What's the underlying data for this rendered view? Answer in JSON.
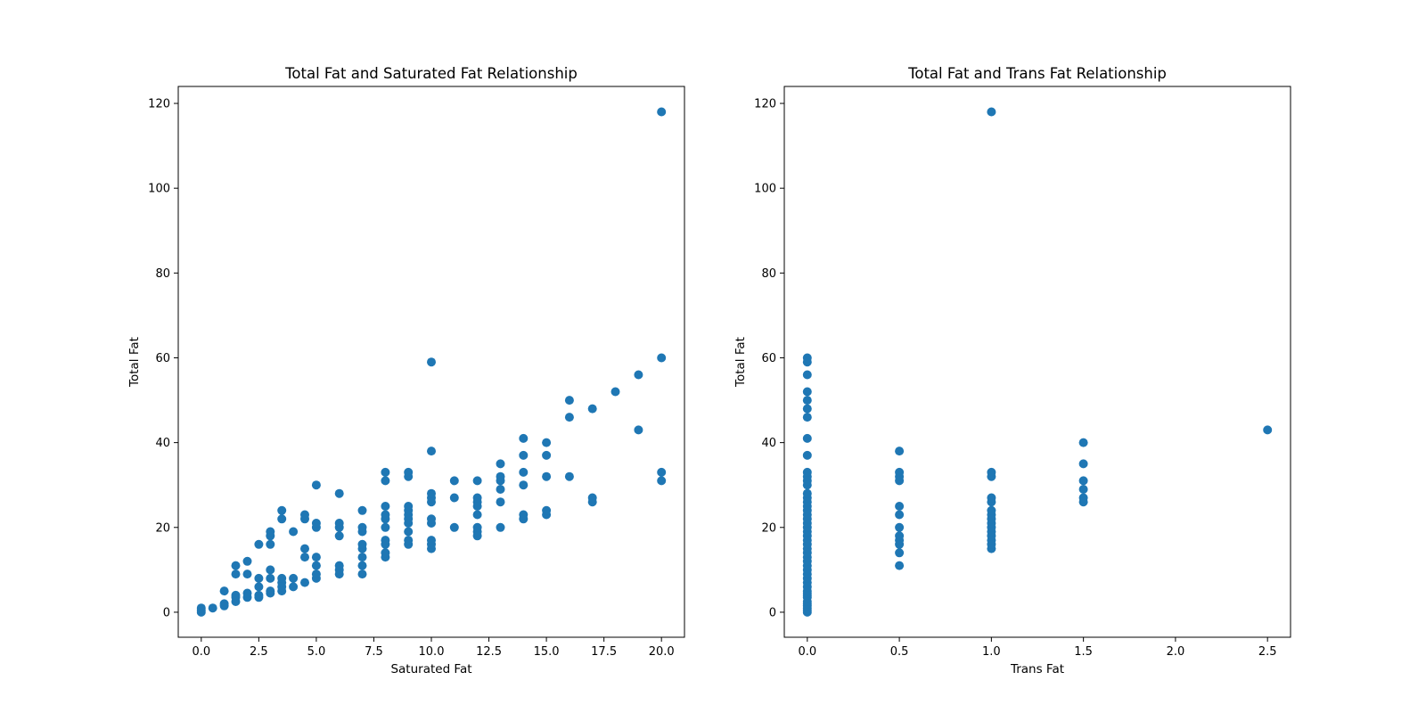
{
  "chart_data": [
    {
      "type": "scatter",
      "title": "Total Fat and Saturated Fat Relationship",
      "xlabel": "Saturated Fat",
      "ylabel": "Total Fat",
      "xlim": [
        -1.0,
        21.0
      ],
      "ylim": [
        -5.9,
        124.0
      ],
      "xticks": [
        0,
        2.5,
        5,
        7.5,
        10,
        12.5,
        15,
        17.5,
        20
      ],
      "xtick_labels": [
        "0.0",
        "2.5",
        "5.0",
        "7.5",
        "10.0",
        "12.5",
        "15.0",
        "17.5",
        "20.0"
      ],
      "yticks": [
        0,
        20,
        40,
        60,
        80,
        100,
        120
      ],
      "ytick_labels": [
        "0",
        "20",
        "40",
        "60",
        "80",
        "100",
        "120"
      ],
      "grid": false,
      "color": "#1f77b4",
      "points": [
        [
          0,
          0
        ],
        [
          0,
          0.5
        ],
        [
          0,
          1
        ],
        [
          0.5,
          1
        ],
        [
          1,
          1.5
        ],
        [
          1,
          2
        ],
        [
          1,
          5
        ],
        [
          1.5,
          2.5
        ],
        [
          1.5,
          3.5
        ],
        [
          1.5,
          4
        ],
        [
          1.5,
          9
        ],
        [
          1.5,
          11
        ],
        [
          2,
          3.5
        ],
        [
          2,
          4.5
        ],
        [
          2,
          9
        ],
        [
          2,
          12
        ],
        [
          2.5,
          3.5
        ],
        [
          2.5,
          4
        ],
        [
          2.5,
          6
        ],
        [
          2.5,
          8
        ],
        [
          2.5,
          16
        ],
        [
          3,
          4.5
        ],
        [
          3,
          5
        ],
        [
          3,
          8
        ],
        [
          3,
          10
        ],
        [
          3,
          16
        ],
        [
          3,
          18
        ],
        [
          3,
          19
        ],
        [
          3.5,
          5
        ],
        [
          3.5,
          6
        ],
        [
          3.5,
          7
        ],
        [
          3.5,
          8
        ],
        [
          3.5,
          22
        ],
        [
          3.5,
          24
        ],
        [
          4,
          6
        ],
        [
          4,
          8
        ],
        [
          4,
          19
        ],
        [
          4.5,
          7
        ],
        [
          4.5,
          13
        ],
        [
          4.5,
          15
        ],
        [
          4.5,
          22
        ],
        [
          4.5,
          23
        ],
        [
          5,
          8
        ],
        [
          5,
          9
        ],
        [
          5,
          11
        ],
        [
          5,
          13
        ],
        [
          5,
          20
        ],
        [
          5,
          21
        ],
        [
          5,
          30
        ],
        [
          6,
          9
        ],
        [
          6,
          10
        ],
        [
          6,
          11
        ],
        [
          6,
          18
        ],
        [
          6,
          20
        ],
        [
          6,
          21
        ],
        [
          6,
          28
        ],
        [
          7,
          9
        ],
        [
          7,
          11
        ],
        [
          7,
          13
        ],
        [
          7,
          15
        ],
        [
          7,
          16
        ],
        [
          7,
          19
        ],
        [
          7,
          20
        ],
        [
          7,
          24
        ],
        [
          8,
          13
        ],
        [
          8,
          14
        ],
        [
          8,
          16
        ],
        [
          8,
          17
        ],
        [
          8,
          20
        ],
        [
          8,
          22
        ],
        [
          8,
          23
        ],
        [
          8,
          25
        ],
        [
          8,
          31
        ],
        [
          8,
          33
        ],
        [
          9,
          16
        ],
        [
          9,
          17
        ],
        [
          9,
          19
        ],
        [
          9,
          21
        ],
        [
          9,
          22
        ],
        [
          9,
          23
        ],
        [
          9,
          24
        ],
        [
          9,
          25
        ],
        [
          9,
          32
        ],
        [
          9,
          33
        ],
        [
          10,
          15
        ],
        [
          10,
          16
        ],
        [
          10,
          17
        ],
        [
          10,
          21
        ],
        [
          10,
          22
        ],
        [
          10,
          26
        ],
        [
          10,
          27
        ],
        [
          10,
          28
        ],
        [
          10,
          38
        ],
        [
          10,
          59
        ],
        [
          11,
          20
        ],
        [
          11,
          27
        ],
        [
          11,
          31
        ],
        [
          12,
          18
        ],
        [
          12,
          19
        ],
        [
          12,
          20
        ],
        [
          12,
          23
        ],
        [
          12,
          25
        ],
        [
          12,
          26
        ],
        [
          12,
          27
        ],
        [
          12,
          31
        ],
        [
          13,
          20
        ],
        [
          13,
          26
        ],
        [
          13,
          29
        ],
        [
          13,
          31
        ],
        [
          13,
          32
        ],
        [
          13,
          35
        ],
        [
          14,
          22
        ],
        [
          14,
          23
        ],
        [
          14,
          30
        ],
        [
          14,
          33
        ],
        [
          14,
          37
        ],
        [
          14,
          41
        ],
        [
          15,
          23
        ],
        [
          15,
          24
        ],
        [
          15,
          32
        ],
        [
          15,
          37
        ],
        [
          15,
          40
        ],
        [
          16,
          32
        ],
        [
          16,
          46
        ],
        [
          16,
          50
        ],
        [
          17,
          26
        ],
        [
          17,
          27
        ],
        [
          17,
          48
        ],
        [
          18,
          52
        ],
        [
          19,
          43
        ],
        [
          19,
          56
        ],
        [
          20,
          31
        ],
        [
          20,
          33
        ],
        [
          20,
          60
        ],
        [
          20,
          118
        ]
      ]
    },
    {
      "type": "scatter",
      "title": "Total Fat and Trans Fat Relationship",
      "xlabel": "Trans Fat",
      "ylabel": "Total Fat",
      "xlim": [
        -0.125,
        2.625
      ],
      "ylim": [
        -5.9,
        124.0
      ],
      "xticks": [
        0,
        0.5,
        1,
        1.5,
        2,
        2.5
      ],
      "xtick_labels": [
        "0.0",
        "0.5",
        "1.0",
        "1.5",
        "2.0",
        "2.5"
      ],
      "yticks": [
        0,
        20,
        40,
        60,
        80,
        100,
        120
      ],
      "ytick_labels": [
        "0",
        "20",
        "40",
        "60",
        "80",
        "100",
        "120"
      ],
      "grid": false,
      "color": "#1f77b4",
      "points": [
        [
          0,
          0
        ],
        [
          0,
          0.5
        ],
        [
          0,
          1
        ],
        [
          0,
          1.5
        ],
        [
          0,
          2
        ],
        [
          0,
          2.5
        ],
        [
          0,
          3.5
        ],
        [
          0,
          4
        ],
        [
          0,
          4.5
        ],
        [
          0,
          5
        ],
        [
          0,
          6
        ],
        [
          0,
          7
        ],
        [
          0,
          8
        ],
        [
          0,
          9
        ],
        [
          0,
          10
        ],
        [
          0,
          11
        ],
        [
          0,
          12
        ],
        [
          0,
          13
        ],
        [
          0,
          14
        ],
        [
          0,
          15
        ],
        [
          0,
          16
        ],
        [
          0,
          17
        ],
        [
          0,
          18
        ],
        [
          0,
          19
        ],
        [
          0,
          20
        ],
        [
          0,
          21
        ],
        [
          0,
          22
        ],
        [
          0,
          23
        ],
        [
          0,
          24
        ],
        [
          0,
          25
        ],
        [
          0,
          26
        ],
        [
          0,
          27
        ],
        [
          0,
          28
        ],
        [
          0,
          30
        ],
        [
          0,
          31
        ],
        [
          0,
          32
        ],
        [
          0,
          33
        ],
        [
          0,
          37
        ],
        [
          0,
          41
        ],
        [
          0,
          46
        ],
        [
          0,
          48
        ],
        [
          0,
          50
        ],
        [
          0,
          52
        ],
        [
          0,
          56
        ],
        [
          0,
          59
        ],
        [
          0,
          60
        ],
        [
          0.5,
          11
        ],
        [
          0.5,
          14
        ],
        [
          0.5,
          16
        ],
        [
          0.5,
          17
        ],
        [
          0.5,
          18
        ],
        [
          0.5,
          20
        ],
        [
          0.5,
          23
        ],
        [
          0.5,
          25
        ],
        [
          0.5,
          31
        ],
        [
          0.5,
          32
        ],
        [
          0.5,
          33
        ],
        [
          0.5,
          38
        ],
        [
          1,
          15
        ],
        [
          1,
          16
        ],
        [
          1,
          17
        ],
        [
          1,
          18
        ],
        [
          1,
          19
        ],
        [
          1,
          20
        ],
        [
          1,
          21
        ],
        [
          1,
          22
        ],
        [
          1,
          23
        ],
        [
          1,
          24
        ],
        [
          1,
          26
        ],
        [
          1,
          27
        ],
        [
          1,
          32
        ],
        [
          1,
          33
        ],
        [
          1,
          118
        ],
        [
          1.5,
          26
        ],
        [
          1.5,
          27
        ],
        [
          1.5,
          29
        ],
        [
          1.5,
          31
        ],
        [
          1.5,
          35
        ],
        [
          1.5,
          40
        ],
        [
          2.5,
          43
        ]
      ]
    }
  ]
}
